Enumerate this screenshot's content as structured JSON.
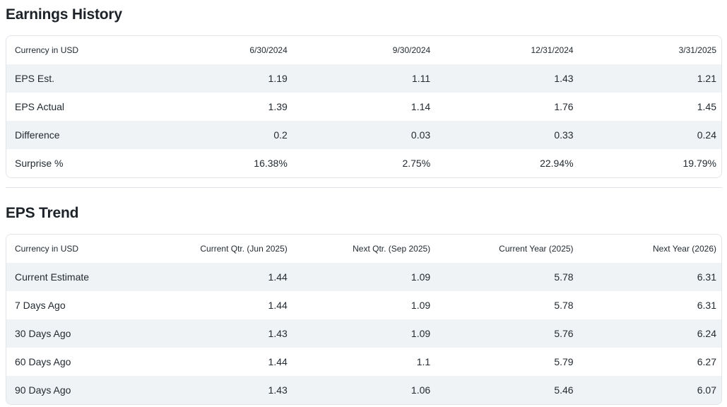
{
  "colors": {
    "text": "#232a31",
    "title": "#1c2228",
    "row_stripe": "#f0f3f5",
    "table_border": "#e0e4e9",
    "background": "#ffffff"
  },
  "sections": [
    {
      "title": "Earnings History",
      "table": {
        "header": [
          "Currency in USD",
          "6/30/2024",
          "9/30/2024",
          "12/31/2024",
          "3/31/2025"
        ],
        "rows": [
          {
            "label": "EPS Est.",
            "values": [
              "1.19",
              "1.11",
              "1.43",
              "1.21"
            ]
          },
          {
            "label": "EPS Actual",
            "values": [
              "1.39",
              "1.14",
              "1.76",
              "1.45"
            ]
          },
          {
            "label": "Difference",
            "values": [
              "0.2",
              "0.03",
              "0.33",
              "0.24"
            ]
          },
          {
            "label": "Surprise %",
            "values": [
              "16.38%",
              "2.75%",
              "22.94%",
              "19.79%"
            ]
          }
        ]
      }
    },
    {
      "title": "EPS Trend",
      "table": {
        "header": [
          "Currency in USD",
          "Current Qtr. (Jun 2025)",
          "Next Qtr. (Sep 2025)",
          "Current Year (2025)",
          "Next Year (2026)"
        ],
        "rows": [
          {
            "label": "Current Estimate",
            "values": [
              "1.44",
              "1.09",
              "5.78",
              "6.31"
            ]
          },
          {
            "label": "7 Days Ago",
            "values": [
              "1.44",
              "1.09",
              "5.78",
              "6.31"
            ]
          },
          {
            "label": "30 Days Ago",
            "values": [
              "1.43",
              "1.09",
              "5.76",
              "6.24"
            ]
          },
          {
            "label": "60 Days Ago",
            "values": [
              "1.44",
              "1.1",
              "5.79",
              "6.27"
            ]
          },
          {
            "label": "90 Days Ago",
            "values": [
              "1.43",
              "1.06",
              "5.46",
              "6.07"
            ]
          }
        ]
      }
    }
  ]
}
